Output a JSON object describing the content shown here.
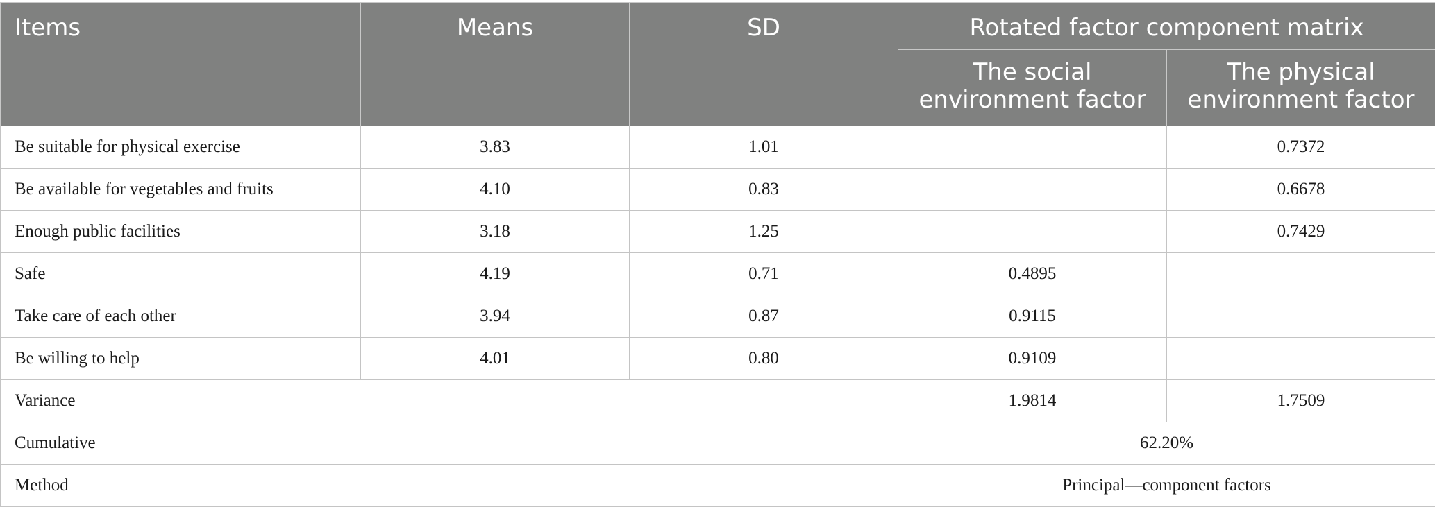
{
  "table": {
    "headers": {
      "items": "Items",
      "means": "Means",
      "sd": "SD",
      "group": "Rotated factor component matrix",
      "social_line1": "The social",
      "social_line2": "environment factor",
      "physical_line1": "The physical",
      "physical_line2": "environment factor"
    },
    "rows": [
      {
        "item": "Be suitable for physical exercise",
        "mean": "3.83",
        "sd": "1.01",
        "social": "",
        "physical": "0.7372"
      },
      {
        "item": "Be available for vegetables and fruits",
        "mean": "4.10",
        "sd": "0.83",
        "social": "",
        "physical": "0.6678"
      },
      {
        "item": "Enough public facilities",
        "mean": "3.18",
        "sd": "1.25",
        "social": "",
        "physical": "0.7429"
      },
      {
        "item": "Safe",
        "mean": "4.19",
        "sd": "0.71",
        "social": "0.4895",
        "physical": ""
      },
      {
        "item": "Take care of each other",
        "mean": "3.94",
        "sd": "0.87",
        "social": "0.9115",
        "physical": ""
      },
      {
        "item": "Be willing to help",
        "mean": "4.01",
        "sd": "0.80",
        "social": "0.9109",
        "physical": ""
      }
    ],
    "variance": {
      "label": "Variance",
      "social": "1.9814",
      "physical": "1.7509"
    },
    "cumulative": {
      "label": "Cumulative",
      "value": "62.20%"
    },
    "method": {
      "label": "Method",
      "value": "Principal—component factors"
    }
  }
}
